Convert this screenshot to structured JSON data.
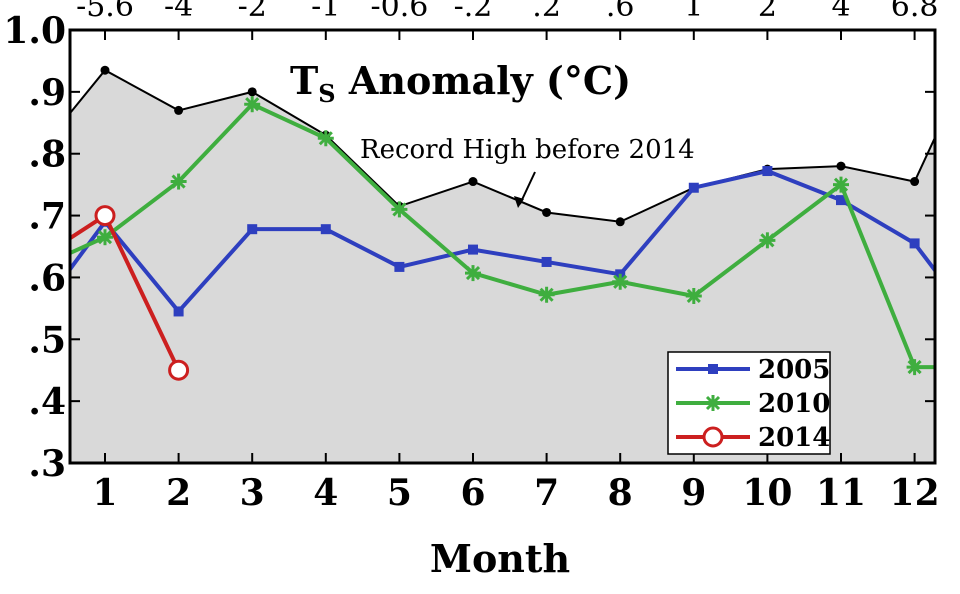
{
  "chart_data": {
    "type": "line",
    "title": "T",
    "title_sub": "S",
    "title_rest": " Anomaly (°C)",
    "xlabel": "Month",
    "ylabel": "",
    "x": [
      1,
      2,
      3,
      4,
      5,
      6,
      7,
      8,
      9,
      10,
      11,
      12
    ],
    "x_tick_labels": [
      "1",
      "2",
      "3",
      "4",
      "5",
      "6",
      "7",
      "8",
      "9",
      "10",
      "11",
      "12"
    ],
    "ylim": [
      0.3,
      1.0
    ],
    "y_ticks": [
      0.3,
      0.4,
      0.5,
      0.6,
      0.7,
      0.8,
      0.9,
      1.0
    ],
    "y_tick_labels": [
      ".3",
      ".4",
      ".5",
      ".6",
      ".7",
      ".8",
      ".9",
      "1.0"
    ],
    "top_tick_labels": [
      "-5.6",
      "-4",
      "-2",
      "-1",
      "-0.6",
      "-.2",
      ".2",
      ".6",
      "1",
      "2",
      "4",
      "6.8"
    ],
    "record_high": {
      "label": "Record High before 2014",
      "x": [
        0.35,
        1,
        2,
        3,
        4,
        5,
        6,
        7,
        8,
        9,
        10,
        11,
        12,
        12.35
      ],
      "values": [
        0.84,
        0.935,
        0.87,
        0.9,
        0.83,
        0.715,
        0.755,
        0.705,
        0.69,
        0.745,
        0.775,
        0.78,
        0.755,
        0.845
      ],
      "fill_color": "#d9d9d9",
      "line_color": "#000000"
    },
    "series": [
      {
        "name": "2005",
        "color": "#2e3fbf",
        "marker": "square",
        "x": [
          0.35,
          1,
          2,
          3,
          4,
          5,
          6,
          7,
          8,
          9,
          10,
          11,
          12,
          12.35
        ],
        "values": [
          0.585,
          0.69,
          0.545,
          0.678,
          0.678,
          0.617,
          0.645,
          0.625,
          0.605,
          0.745,
          0.772,
          0.725,
          0.655,
          0.6
        ]
      },
      {
        "name": "2010",
        "color": "#3fae3f",
        "marker": "star",
        "x": [
          0.35,
          1,
          2,
          3,
          4,
          5,
          6,
          7,
          8,
          9,
          10,
          11,
          12,
          12.35
        ],
        "values": [
          0.63,
          0.665,
          0.755,
          0.88,
          0.825,
          0.71,
          0.607,
          0.572,
          0.593,
          0.57,
          0.66,
          0.75,
          0.455,
          0.455
        ]
      },
      {
        "name": "2014",
        "color": "#cc1f1f",
        "marker": "circle",
        "x": [
          0.35,
          1,
          2
        ],
        "values": [
          0.65,
          0.7,
          0.45
        ]
      }
    ],
    "legend_position": "bottom-right",
    "grid": false
  }
}
